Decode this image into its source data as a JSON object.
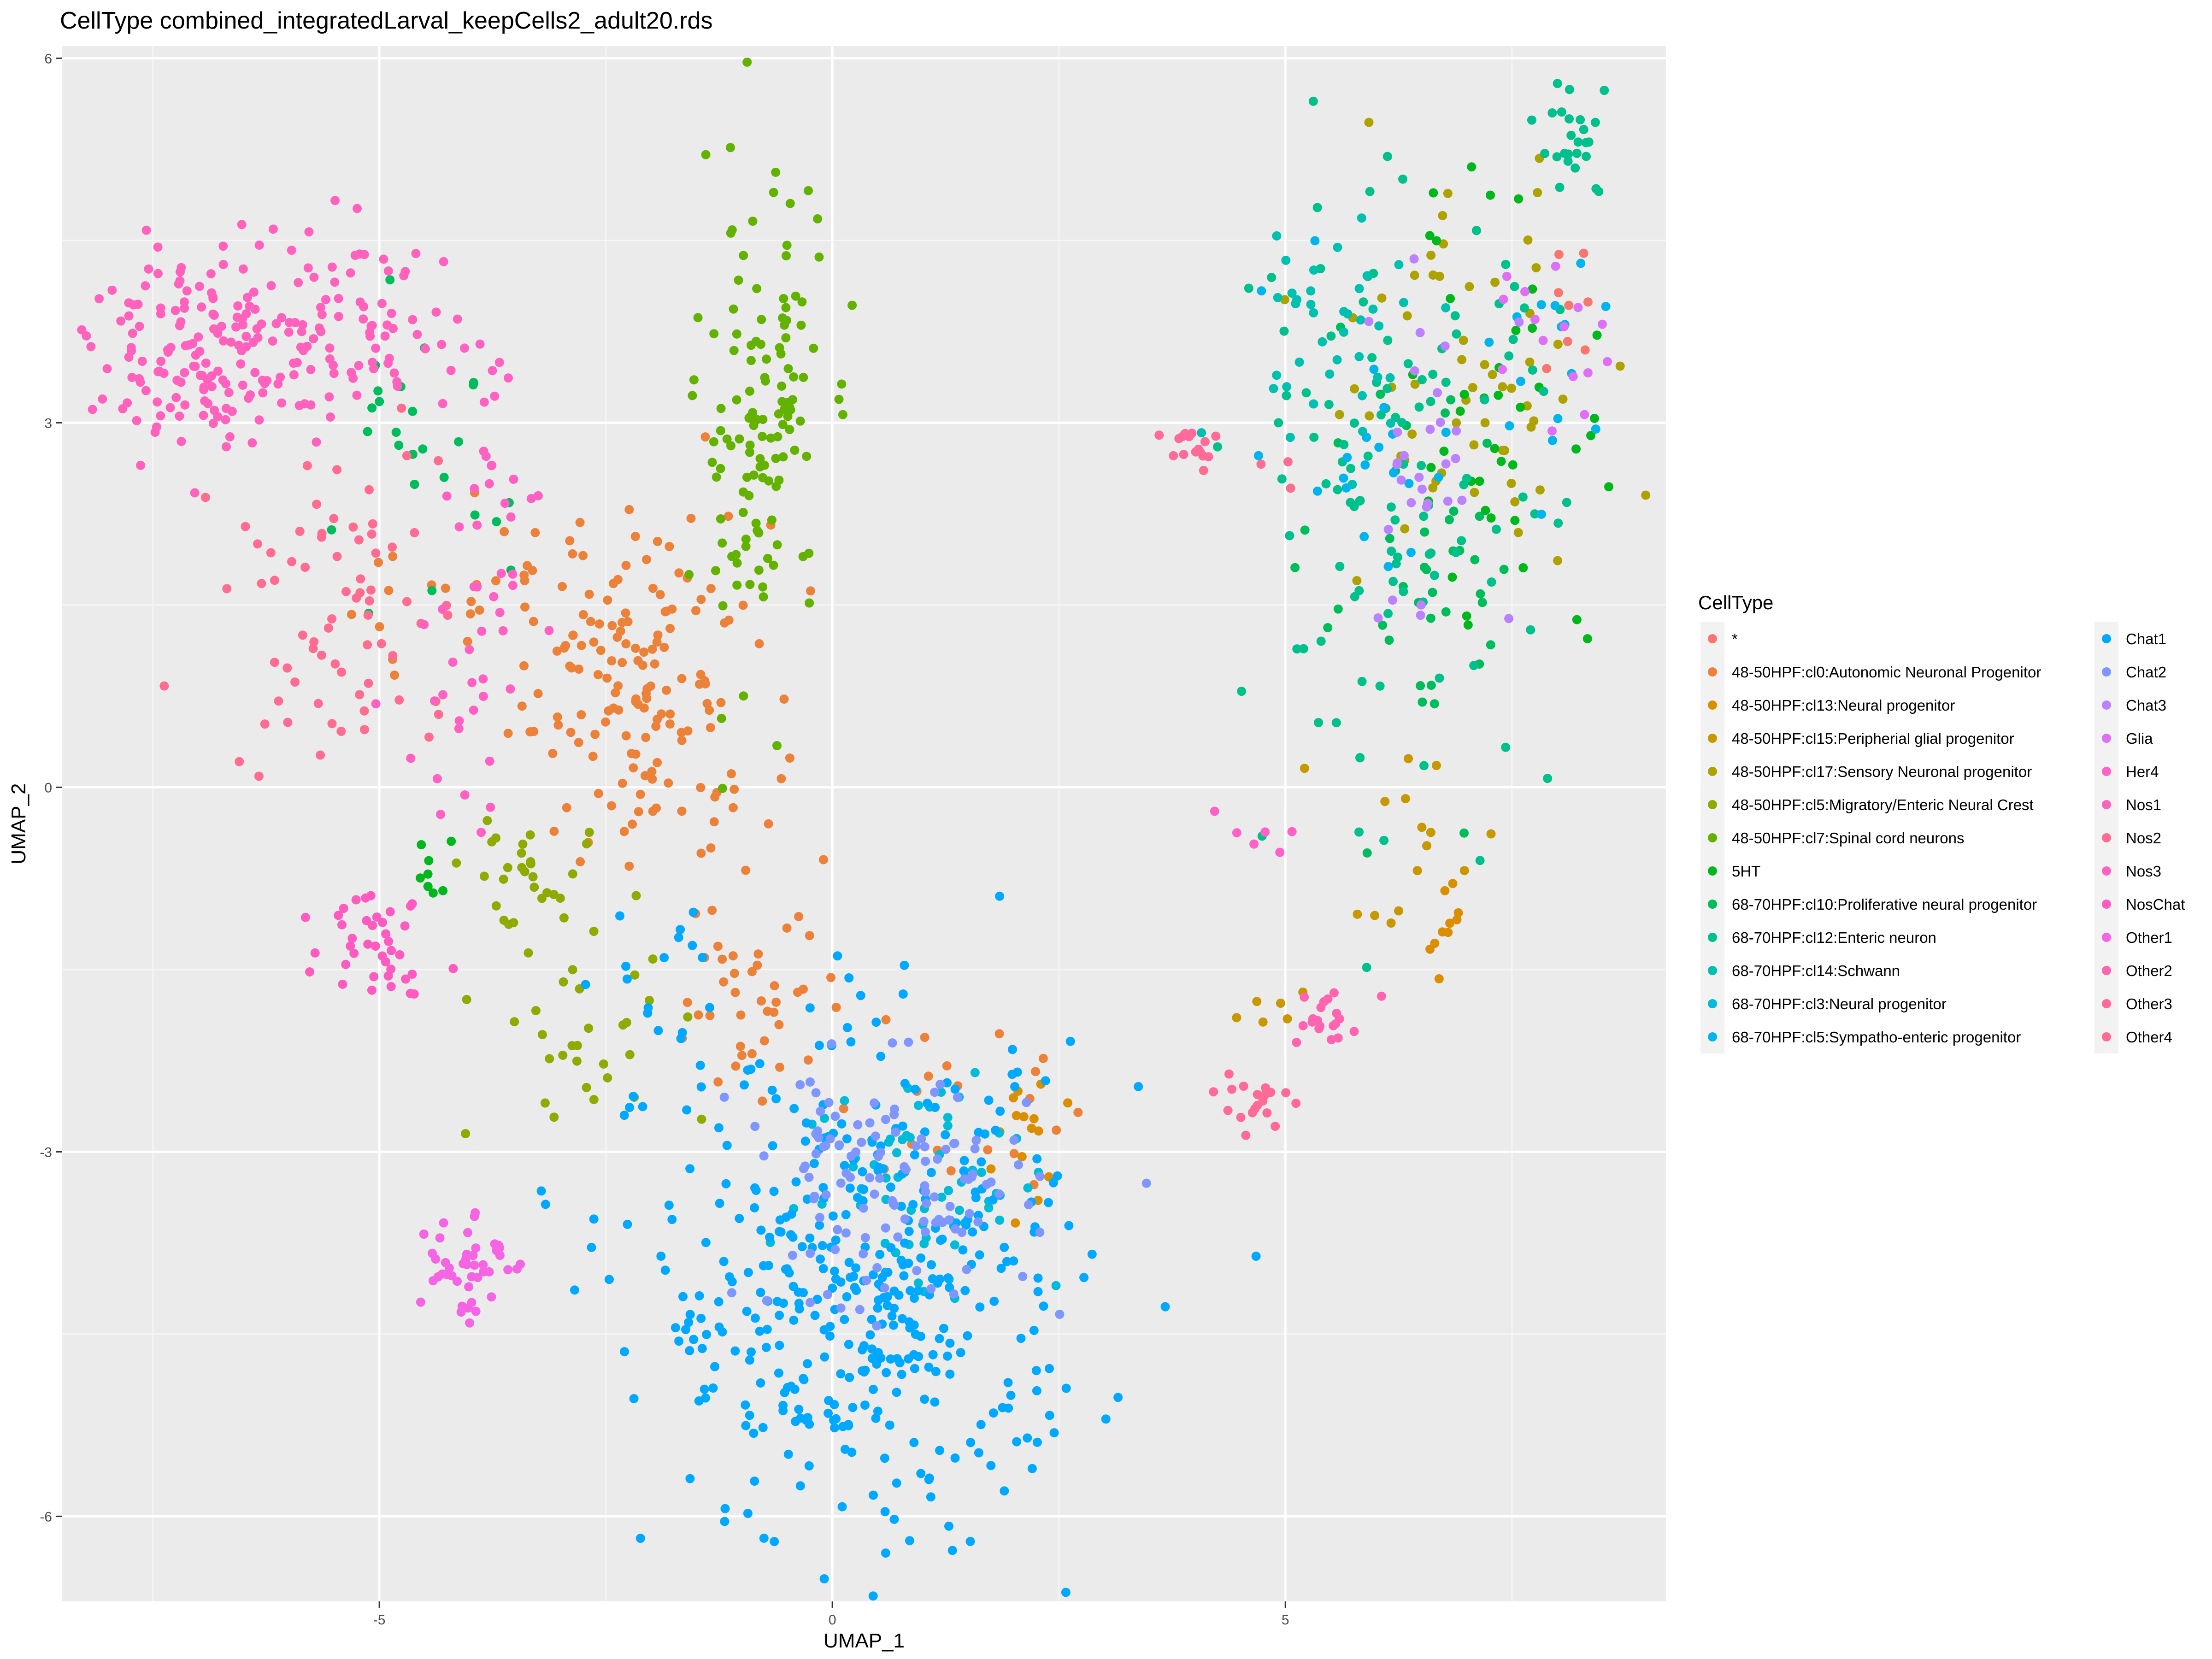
{
  "chart_data": {
    "type": "scatter",
    "title": "CellType combined_integratedLarval_keepCells2_adult20.rds",
    "xlabel": "UMAP_1",
    "ylabel": "UMAP_2",
    "xlim": [
      -8.5,
      9.2
    ],
    "ylim": [
      -6.7,
      6.1
    ],
    "x_ticks": [
      -5,
      0,
      5
    ],
    "x_tick_labels": [
      "-5",
      "0",
      "5"
    ],
    "y_ticks": [
      -6,
      -3,
      0,
      3,
      6
    ],
    "y_tick_labels": [
      "-6",
      "-3",
      "0",
      "3",
      "6"
    ],
    "grid": true,
    "legend": {
      "title": "CellType",
      "placement": "right",
      "columns": 2
    },
    "series": [
      {
        "label": "*",
        "color": "#F8766D",
        "clusters": [
          {
            "cx": 8.2,
            "cy": 3.9,
            "sx": 0.25,
            "sy": 0.3,
            "n": 8
          }
        ]
      },
      {
        "label": "48-50HPF:cl0:Autonomic Neuronal Progenitor",
        "color": "#EC8239",
        "clusters": [
          {
            "cx": -2.1,
            "cy": 0.8,
            "sx": 0.7,
            "sy": 0.7,
            "n": 160
          },
          {
            "cx": -0.8,
            "cy": -1.6,
            "sx": 0.5,
            "sy": 0.5,
            "n": 40
          },
          {
            "cx": -4.3,
            "cy": 1.5,
            "sx": 0.5,
            "sy": 0.5,
            "n": 20
          },
          {
            "cx": 1.3,
            "cy": -2.5,
            "sx": 0.6,
            "sy": 0.4,
            "n": 20
          }
        ]
      },
      {
        "label": "48-50HPF:cl13:Neural progenitor",
        "color": "#DB8E00",
        "clusters": [
          {
            "cx": 2.1,
            "cy": -3.0,
            "sx": 0.25,
            "sy": 0.4,
            "n": 15
          },
          {
            "cx": 6.8,
            "cy": -1.1,
            "sx": 0.1,
            "sy": 0.2,
            "n": 10
          }
        ]
      },
      {
        "label": "48-50HPF:cl15:Peripherial glial progenitor",
        "color": "#C79800",
        "clusters": [
          {
            "cx": 6.3,
            "cy": -0.5,
            "sx": 0.4,
            "sy": 0.4,
            "n": 15
          },
          {
            "cx": 4.8,
            "cy": -1.8,
            "sx": 0.2,
            "sy": 0.1,
            "n": 6
          }
        ]
      },
      {
        "label": "48-50HPF:cl17:Sensory Neuronal progenitor",
        "color": "#AEA200",
        "clusters": [
          {
            "cx": 6.9,
            "cy": 3.3,
            "sx": 0.8,
            "sy": 0.8,
            "n": 60
          }
        ]
      },
      {
        "label": "48-50HPF:cl5:Migratory/Enteric Neural Crest",
        "color": "#8FAA00",
        "clusters": [
          {
            "cx": -2.8,
            "cy": -1.8,
            "sx": 0.5,
            "sy": 0.8,
            "n": 40
          },
          {
            "cx": -3.6,
            "cy": -0.6,
            "sx": 0.4,
            "sy": 0.2,
            "n": 20
          }
        ]
      },
      {
        "label": "48-50HPF:cl7:Spinal cord neurons",
        "color": "#64B200",
        "clusters": [
          {
            "cx": -0.8,
            "cy": 3.0,
            "sx": 0.35,
            "sy": 1.0,
            "n": 130
          }
        ]
      },
      {
        "label": "5HT",
        "color": "#00B81B",
        "clusters": [
          {
            "cx": 7.5,
            "cy": 3.0,
            "sx": 0.6,
            "sy": 1.0,
            "n": 40
          },
          {
            "cx": -4.5,
            "cy": -0.7,
            "sx": 0.2,
            "sy": 0.2,
            "n": 8
          }
        ]
      },
      {
        "label": "68-70HPF:cl10:Proliferative neural progenitor",
        "color": "#00BD5C",
        "clusters": [
          {
            "cx": 6.5,
            "cy": 1.5,
            "sx": 0.6,
            "sy": 0.8,
            "n": 40
          },
          {
            "cx": -4.6,
            "cy": 2.5,
            "sx": 0.5,
            "sy": 0.6,
            "n": 25
          }
        ]
      },
      {
        "label": "68-70HPF:cl12:Enteric neuron",
        "color": "#00C08B",
        "clusters": [
          {
            "cx": 6.2,
            "cy": 2.5,
            "sx": 0.9,
            "sy": 1.2,
            "n": 110
          },
          {
            "cx": 8.2,
            "cy": 5.3,
            "sx": 0.2,
            "sy": 0.25,
            "n": 25
          }
        ]
      },
      {
        "label": "68-70HPF:cl14:Schwann",
        "color": "#00C0AF",
        "clusters": [
          {
            "cx": 5.5,
            "cy": 3.8,
            "sx": 0.6,
            "sy": 0.5,
            "n": 40
          }
        ]
      },
      {
        "label": "68-70HPF:cl3:Neural progenitor",
        "color": "#00BCD8",
        "clusters": [
          {
            "cx": 1.1,
            "cy": -3.2,
            "sx": 0.7,
            "sy": 0.5,
            "n": 60
          }
        ]
      },
      {
        "label": "68-70HPF:cl5:Sympatho-enteric progenitor",
        "color": "#00B5EE",
        "clusters": [
          {
            "cx": 6.0,
            "cy": 2.8,
            "sx": 0.6,
            "sy": 0.6,
            "n": 20
          },
          {
            "cx": 7.8,
            "cy": 3.6,
            "sx": 0.35,
            "sy": 0.4,
            "n": 15
          }
        ]
      },
      {
        "label": "Chat1",
        "color": "#00A9FF",
        "clusters": [
          {
            "cx": 0.4,
            "cy": -4.2,
            "sx": 1.2,
            "sy": 1.0,
            "n": 420
          },
          {
            "cx": -1.8,
            "cy": -1.8,
            "sx": 0.4,
            "sy": 0.6,
            "n": 20
          }
        ]
      },
      {
        "label": "Chat2",
        "color": "#7F96FF",
        "clusters": [
          {
            "cx": 0.6,
            "cy": -3.3,
            "sx": 0.8,
            "sy": 0.5,
            "n": 120
          }
        ]
      },
      {
        "label": "Chat3",
        "color": "#BB81FF",
        "clusters": [
          {
            "cx": 6.7,
            "cy": 2.6,
            "sx": 0.6,
            "sy": 0.8,
            "n": 30
          }
        ]
      },
      {
        "label": "Glia",
        "color": "#E06FF7",
        "clusters": [
          {
            "cx": 7.9,
            "cy": 3.7,
            "sx": 0.3,
            "sy": 0.35,
            "n": 15
          }
        ]
      },
      {
        "label": "Her4",
        "color": "#FF61C9",
        "clusters": [
          {
            "cx": 4.8,
            "cy": -0.3,
            "sx": 0.3,
            "sy": 0.2,
            "n": 6
          }
        ]
      },
      {
        "label": "Nos1",
        "color": "#FF62BC",
        "clusters": [
          {
            "cx": -6.8,
            "cy": 3.6,
            "sx": 0.7,
            "sy": 0.4,
            "n": 170
          },
          {
            "cx": -5.2,
            "cy": 3.8,
            "sx": 0.6,
            "sy": 0.4,
            "n": 60
          }
        ]
      },
      {
        "label": "Nos2",
        "color": "#FF6C91",
        "clusters": [
          {
            "cx": -5.5,
            "cy": 1.5,
            "sx": 0.6,
            "sy": 0.7,
            "n": 70
          }
        ]
      },
      {
        "label": "Nos3",
        "color": "#FF61C3",
        "clusters": [
          {
            "cx": -3.9,
            "cy": 2.2,
            "sx": 0.35,
            "sy": 0.9,
            "n": 40
          },
          {
            "cx": -4.1,
            "cy": 0.6,
            "sx": 0.4,
            "sy": 0.5,
            "n": 15
          }
        ]
      },
      {
        "label": "NosChat",
        "color": "#FE5ABF",
        "clusters": [
          {
            "cx": -5.0,
            "cy": -1.2,
            "sx": 0.3,
            "sy": 0.25,
            "n": 40
          }
        ]
      },
      {
        "label": "Other1",
        "color": "#F564E3",
        "clusters": [
          {
            "cx": -4.1,
            "cy": -3.9,
            "sx": 0.25,
            "sy": 0.25,
            "n": 45
          }
        ]
      },
      {
        "label": "Other2",
        "color": "#FF64B0",
        "clusters": [
          {
            "cx": 5.4,
            "cy": -1.9,
            "sx": 0.2,
            "sy": 0.15,
            "n": 20
          }
        ]
      },
      {
        "label": "Other3",
        "color": "#FF6A98",
        "clusters": [
          {
            "cx": 4.6,
            "cy": -2.6,
            "sx": 0.2,
            "sy": 0.15,
            "n": 20
          },
          {
            "cx": 3.9,
            "cy": 2.8,
            "sx": 0.2,
            "sy": 0.1,
            "n": 15
          }
        ]
      },
      {
        "label": "Other4",
        "color": "#FF6C91",
        "clusters": [
          {
            "cx": 4.5,
            "cy": 2.6,
            "sx": 0.5,
            "sy": 0.2,
            "n": 4
          }
        ]
      }
    ]
  }
}
